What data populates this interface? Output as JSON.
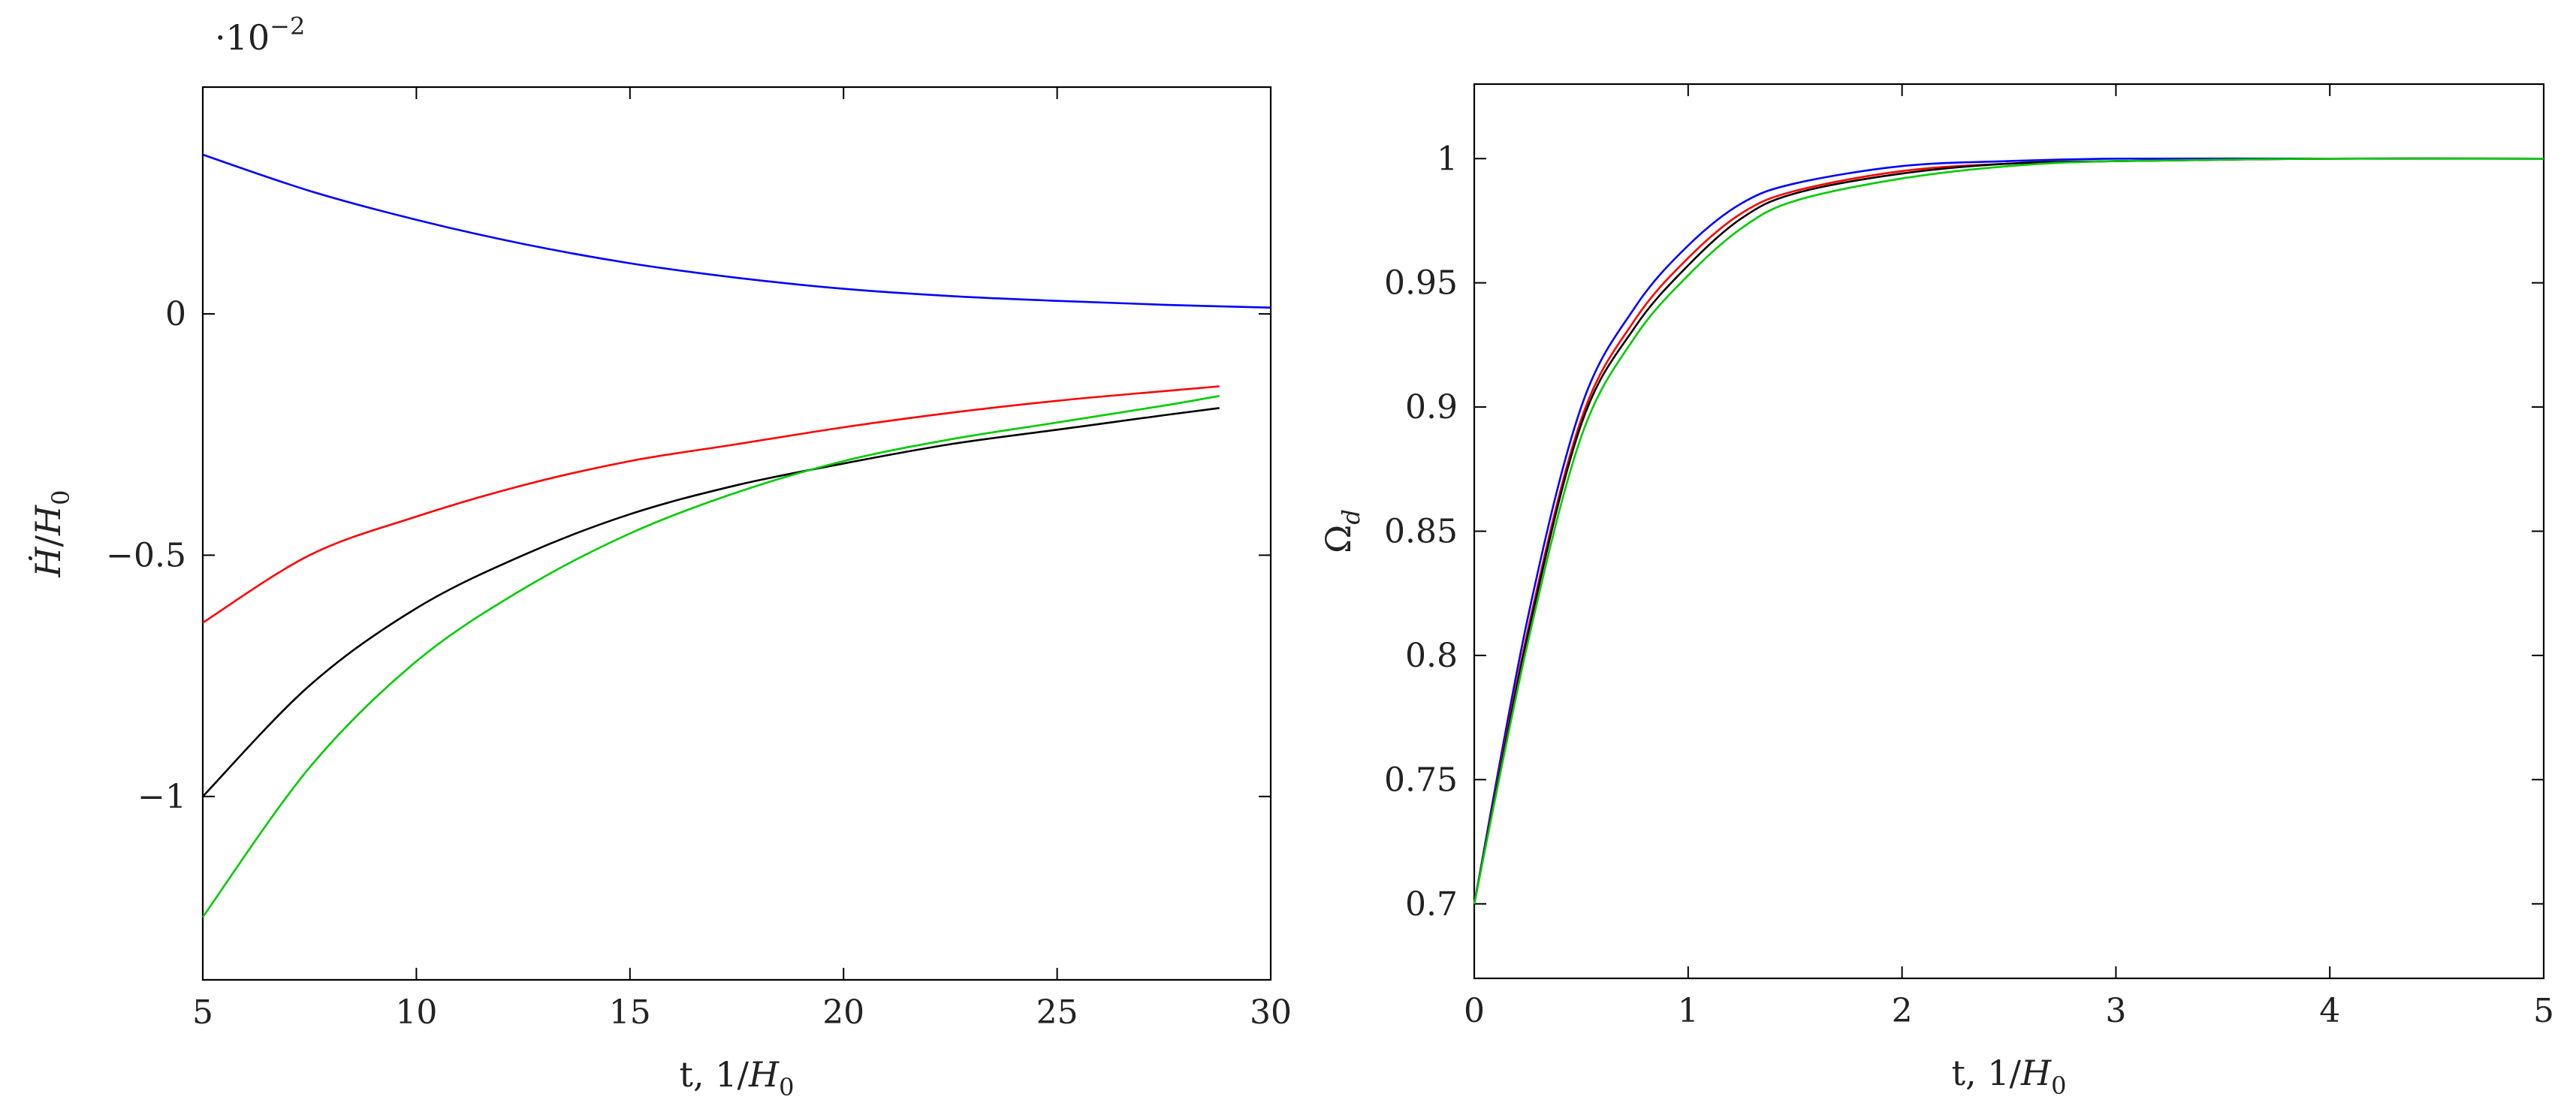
{
  "chart_data": [
    {
      "type": "line",
      "id": "left",
      "xlabel": {
        "prefix": "t, 1/",
        "var": "H",
        "sub": "0"
      },
      "ylabel": {
        "var": "Ḣ",
        "sep": "/",
        "var2": "H",
        "sub": "0"
      },
      "y_scale_note": {
        "prefix": "·10",
        "exp": "−2"
      },
      "xlim": [
        5,
        30
      ],
      "ylim": [
        -1.38,
        0.47
      ],
      "xticks": [
        5,
        10,
        15,
        20,
        25,
        30
      ],
      "xtick_labels": [
        "5",
        "10",
        "15",
        "20",
        "25",
        "30"
      ],
      "yticks": [
        -1,
        -0.5,
        0
      ],
      "ytick_labels": [
        "−1",
        "−0.5",
        "0"
      ],
      "series": [
        {
          "name": "blue",
          "color": "#0000ff",
          "x": [
            5,
            7.5,
            10,
            12.5,
            15,
            17.5,
            20,
            22.5,
            25,
            27.5,
            30
          ],
          "y": [
            0.33,
            0.255,
            0.195,
            0.145,
            0.105,
            0.075,
            0.052,
            0.037,
            0.027,
            0.019,
            0.013
          ]
        },
        {
          "name": "red",
          "color": "#ff0000",
          "x": [
            5,
            7.5,
            10,
            12.5,
            15,
            17.5,
            20,
            22.5,
            25,
            27.5,
            28.8
          ],
          "y": [
            -0.64,
            -0.5,
            -0.42,
            -0.355,
            -0.305,
            -0.27,
            -0.235,
            -0.205,
            -0.18,
            -0.16,
            -0.15
          ]
        },
        {
          "name": "black",
          "color": "#000000",
          "x": [
            5,
            7.5,
            10,
            12.5,
            15,
            17.5,
            20,
            22.5,
            25,
            27.5,
            28.8
          ],
          "y": [
            -1.0,
            -0.77,
            -0.61,
            -0.5,
            -0.415,
            -0.355,
            -0.31,
            -0.27,
            -0.24,
            -0.21,
            -0.195
          ]
        },
        {
          "name": "green",
          "color": "#00cc00",
          "x": [
            5,
            7.5,
            10,
            12.5,
            15,
            17.5,
            20,
            22.5,
            25,
            27.5,
            28.8
          ],
          "y": [
            -1.25,
            -0.94,
            -0.72,
            -0.57,
            -0.455,
            -0.37,
            -0.305,
            -0.26,
            -0.225,
            -0.19,
            -0.17
          ]
        }
      ]
    },
    {
      "type": "line",
      "id": "right",
      "xlabel": {
        "prefix": "t, 1/",
        "var": "H",
        "sub": "0"
      },
      "ylabel": {
        "var": "Ω",
        "sub": "d"
      },
      "xlim": [
        0,
        5
      ],
      "ylim": [
        0.67,
        1.03
      ],
      "xticks": [
        0,
        1,
        2,
        3,
        4,
        5
      ],
      "xtick_labels": [
        "0",
        "1",
        "2",
        "3",
        "4",
        "5"
      ],
      "yticks": [
        0.7,
        0.75,
        0.8,
        0.85,
        0.9,
        0.95,
        1
      ],
      "ytick_labels": [
        "0.7",
        "0.75",
        "0.8",
        "0.85",
        "0.9",
        "0.95",
        "1"
      ],
      "series": [
        {
          "name": "blue",
          "color": "#0000ff",
          "x": [
            0,
            0.25,
            0.5,
            0.75,
            1.0,
            1.25,
            1.5,
            2.0,
            2.5,
            3.0,
            4.0,
            5.0
          ],
          "y": [
            0.7,
            0.815,
            0.9,
            0.94,
            0.965,
            0.982,
            0.99,
            0.997,
            0.999,
            1.0,
            1.0,
            1.0
          ]
        },
        {
          "name": "red",
          "color": "#ff0000",
          "x": [
            0,
            0.25,
            0.5,
            0.75,
            1.0,
            1.25,
            1.5,
            2.0,
            2.5,
            3.0,
            4.0,
            5.0
          ],
          "y": [
            0.7,
            0.81,
            0.895,
            0.935,
            0.96,
            0.978,
            0.987,
            0.995,
            0.998,
            0.999,
            1.0,
            1.0
          ]
        },
        {
          "name": "black",
          "color": "#000000",
          "x": [
            0,
            0.25,
            0.5,
            0.75,
            1.0,
            1.25,
            1.5,
            2.0,
            2.5,
            3.0,
            4.0,
            5.0
          ],
          "y": [
            0.7,
            0.808,
            0.893,
            0.932,
            0.957,
            0.976,
            0.986,
            0.994,
            0.998,
            0.999,
            1.0,
            1.0
          ]
        },
        {
          "name": "green",
          "color": "#00cc00",
          "x": [
            0,
            0.25,
            0.5,
            0.75,
            1.0,
            1.25,
            1.5,
            2.0,
            2.5,
            3.0,
            4.0,
            5.0
          ],
          "y": [
            0.7,
            0.805,
            0.888,
            0.928,
            0.953,
            0.972,
            0.983,
            0.992,
            0.997,
            0.999,
            1.0,
            1.0
          ]
        }
      ]
    }
  ]
}
